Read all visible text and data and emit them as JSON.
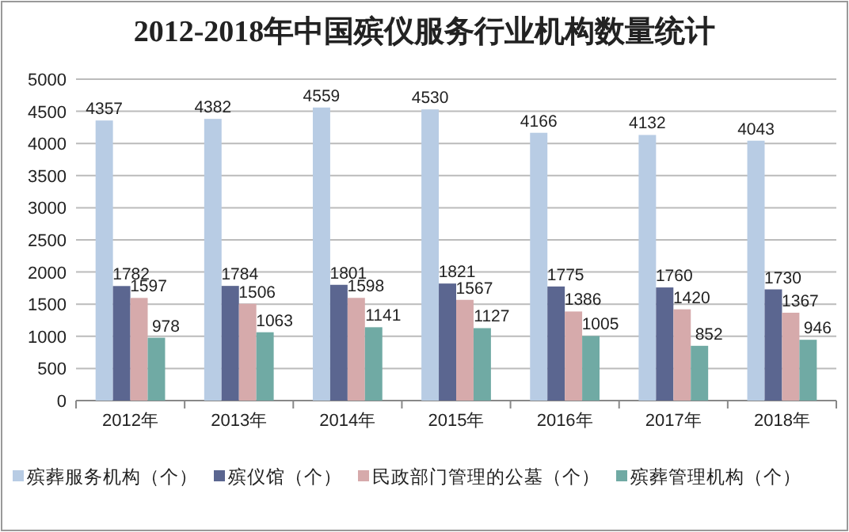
{
  "chart_data": {
    "type": "bar",
    "title": "2012-2018年中国殡仪服务行业机构数量统计",
    "categories": [
      "2012年",
      "2013年",
      "2014年",
      "2015年",
      "2016年",
      "2017年",
      "2018年"
    ],
    "series": [
      {
        "name": "殡葬服务机构（个）",
        "color": "#b8cce4",
        "values": [
          4357,
          4382,
          4559,
          4530,
          4166,
          4132,
          4043
        ]
      },
      {
        "name": "殡仪馆（个）",
        "color": "#5b6690",
        "values": [
          1782,
          1784,
          1801,
          1821,
          1775,
          1760,
          1730
        ]
      },
      {
        "name": "民政部门管理的公墓（个）",
        "color": "#d6aaab",
        "values": [
          1597,
          1506,
          1598,
          1567,
          1386,
          1420,
          1367
        ]
      },
      {
        "name": "殡葬管理机构（个）",
        "color": "#70aaa4",
        "values": [
          978,
          1063,
          1141,
          1127,
          1005,
          852,
          946
        ]
      }
    ],
    "ylim": [
      0,
      5000
    ],
    "yticks": [
      0,
      500,
      1000,
      1500,
      2000,
      2500,
      3000,
      3500,
      4000,
      4500,
      5000
    ],
    "grid": "y",
    "legend": "bottom",
    "data_labels": true
  }
}
